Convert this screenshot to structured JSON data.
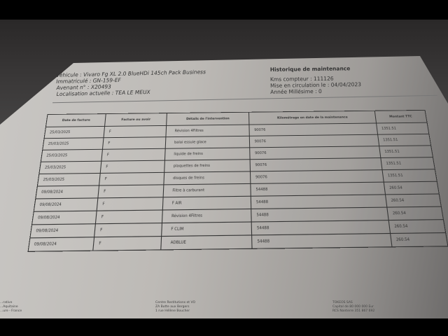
{
  "vehicle": {
    "vehicule": "Véhicule : Vivaro Fg XL 2.0 BlueHDi 145ch Pack Business",
    "immatricule": "Immatriculé : GN-159-EF",
    "avenant": "Avenant n° : X20493",
    "localisation": "Localisation actuelle : TEA LE MEUX"
  },
  "summary": {
    "title": "Historique de maintenance",
    "kms": "Kms compteur : 111126",
    "mise_en_circulation": "Mise en circulation le : 04/04/2023",
    "annee": "Année Millésime : 0"
  },
  "table": {
    "headers": [
      "Date de facture",
      "Facture ou avoir",
      "Détails de l'intervention",
      "Kilométrage en date de la maintenance",
      "Montant TTC"
    ],
    "rows": [
      [
        "25/03/2025",
        "F",
        "Révision 4Filtres",
        "90076",
        "1351.51"
      ],
      [
        "25/03/2025",
        "F",
        "balai essuie glace",
        "90076",
        "1351.51"
      ],
      [
        "25/03/2025",
        "F",
        "liquide de freins",
        "90076",
        "1351.51"
      ],
      [
        "25/03/2025",
        "F",
        "plaquettes de freins",
        "90076",
        "1351.51"
      ],
      [
        "25/03/2025",
        "F",
        "disques de freins",
        "90076",
        "1351.51"
      ],
      [
        "09/08/2024",
        "F",
        "Filtre à carburant",
        "54488",
        "260.54"
      ],
      [
        "09/08/2024",
        "F",
        "F AIR",
        "54488",
        "260.54"
      ],
      [
        "09/08/2024",
        "F",
        "Révision 4Filtres",
        "54488",
        "260.54"
      ],
      [
        "09/08/2024",
        "F",
        "F CLIM",
        "54488",
        "260.54"
      ],
      [
        "09/08/2024",
        "F",
        "ADBLUE",
        "54488",
        "260.54"
      ]
    ]
  },
  "footer": {
    "left": [
      "...rative",
      "...Aquitaine",
      "...ure - France"
    ],
    "center": [
      "Centre Restitutions et VO",
      "ZA Butte aux Bergers",
      "1 rue Hélène Boucher"
    ],
    "right": [
      "TOKEOS SAS",
      "Capital de 80 000 000 Eur",
      "RCS Nanterre 351 867 692"
    ]
  }
}
